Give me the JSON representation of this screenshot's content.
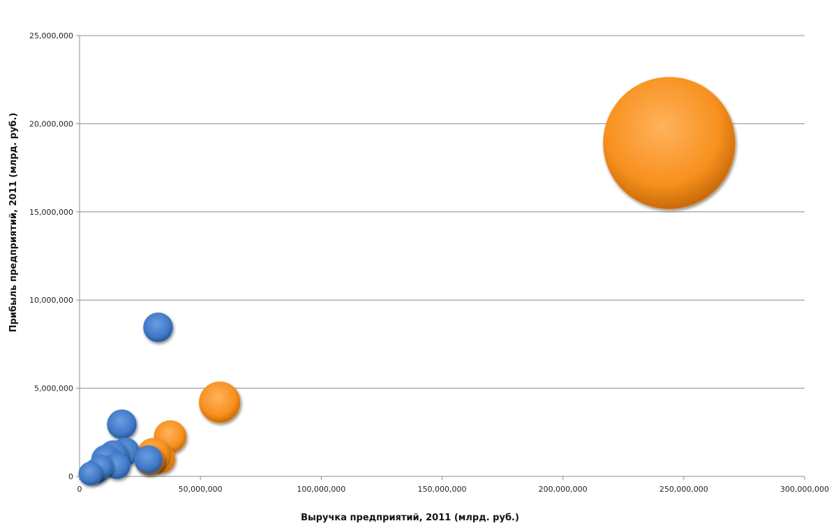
{
  "chart_data": {
    "type": "scatter",
    "xlabel": "Выручка предприятий, 2011 (млрд. руб.)",
    "ylabel": "Прибыль предприятий, 2011 (млрд. руб.)",
    "xlim": [
      0,
      300000000
    ],
    "ylim": [
      0,
      25000000
    ],
    "x_ticks": [
      "0",
      "50,000,000",
      "100,000,000",
      "150,000,000",
      "200,000,000",
      "250,000,000",
      "300,000,000"
    ],
    "y_ticks": [
      "0",
      "5,000,000",
      "10,000,000",
      "15,000,000",
      "20,000,000",
      "25,000,000"
    ],
    "grid": "horizontal",
    "series": [
      {
        "color": "#f7901e",
        "points": [
          {
            "x": 244000000,
            "y": 18900000,
            "size": 4.5
          },
          {
            "x": 58000000,
            "y": 4200000,
            "size": 1.4
          },
          {
            "x": 37500000,
            "y": 2250000,
            "size": 1.1
          },
          {
            "x": 33500000,
            "y": 1000000,
            "size": 1.0
          },
          {
            "x": 30500000,
            "y": 1250000,
            "size": 1.1
          },
          {
            "x": 29000000,
            "y": 900000,
            "size": 1.0
          }
        ]
      },
      {
        "color": "#3f79c7",
        "points": [
          {
            "x": 32500000,
            "y": 8450000,
            "size": 1.0
          },
          {
            "x": 17500000,
            "y": 2950000,
            "size": 1.0
          },
          {
            "x": 19000000,
            "y": 1400000,
            "size": 0.95
          },
          {
            "x": 28500000,
            "y": 950000,
            "size": 0.95
          },
          {
            "x": 14000000,
            "y": 1200000,
            "size": 1.0
          },
          {
            "x": 11000000,
            "y": 950000,
            "size": 1.0
          },
          {
            "x": 15500000,
            "y": 600000,
            "size": 0.9
          },
          {
            "x": 7000000,
            "y": 300000,
            "size": 0.85
          },
          {
            "x": 9000000,
            "y": 550000,
            "size": 0.8
          },
          {
            "x": 4500000,
            "y": 150000,
            "size": 0.8
          }
        ]
      }
    ]
  }
}
